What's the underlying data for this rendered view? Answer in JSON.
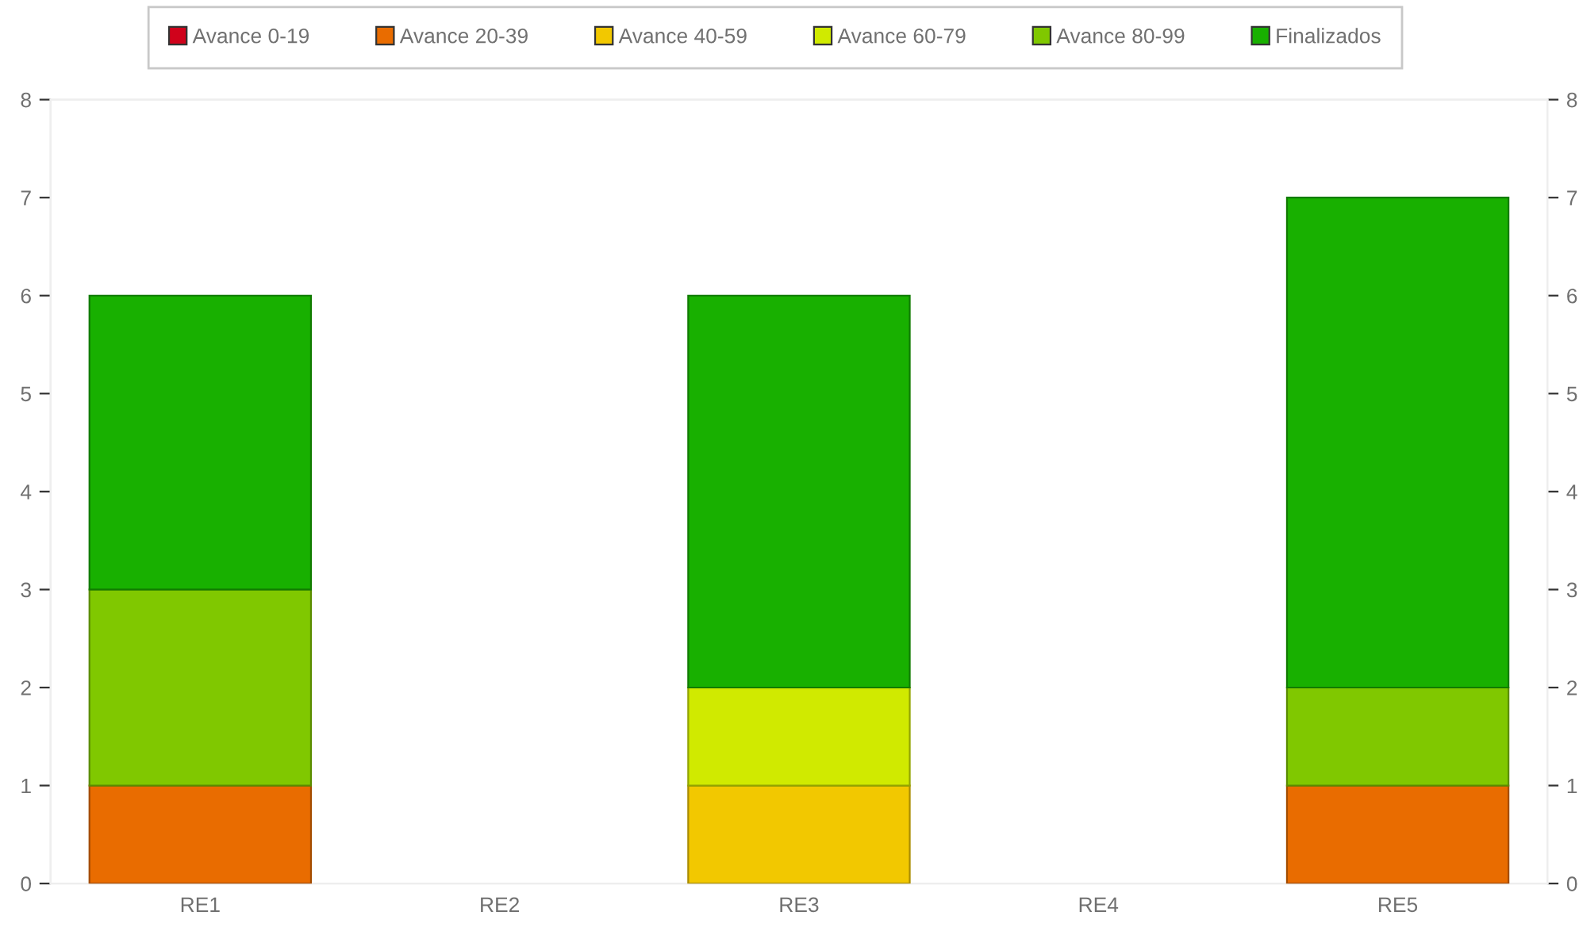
{
  "chart_data": {
    "type": "bar",
    "stacked": true,
    "categories": [
      "RE1",
      "RE2",
      "RE3",
      "RE4",
      "RE5"
    ],
    "series": [
      {
        "name": "Avance 0-19",
        "color": "#d0021b",
        "values": [
          0,
          0,
          0,
          0,
          0
        ]
      },
      {
        "name": "Avance 20-39",
        "color": "#e96c00",
        "values": [
          1,
          0,
          0,
          0,
          1
        ]
      },
      {
        "name": "Avance 40-59",
        "color": "#f2c800",
        "values": [
          0,
          0,
          1,
          0,
          0
        ]
      },
      {
        "name": "Avance 60-79",
        "color": "#d0ea00",
        "values": [
          0,
          0,
          1,
          0,
          0
        ]
      },
      {
        "name": "Avance 80-99",
        "color": "#80c800",
        "values": [
          2,
          0,
          0,
          0,
          1
        ]
      },
      {
        "name": "Finalizados",
        "color": "#18b000",
        "values": [
          3,
          0,
          4,
          0,
          5
        ]
      }
    ],
    "ylim": [
      0,
      8
    ],
    "yticks": [
      0,
      1,
      2,
      3,
      4,
      5,
      6,
      7,
      8
    ],
    "y2lim": [
      0,
      8
    ],
    "y2ticks": [
      0,
      1,
      2,
      3,
      4,
      5,
      6,
      7,
      8
    ],
    "legend": "top",
    "grid": false
  }
}
